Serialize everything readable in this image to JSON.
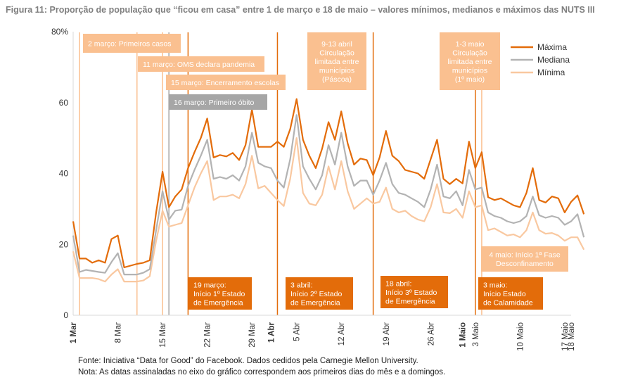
{
  "figure_title": "Figura 11: Proporção de população que “ficou em casa” entre 1 de março e 18 de maio – valores mínimos, medianos e máximos das NUTS III",
  "footer": {
    "source": "Fonte: Iniciativa “Data for Good” do Facebook. Dados cedidos pela Carnegie Mellon University.",
    "note": "Nota: As datas assinaladas no eixo do gráfico correspondem aos primeiros dias do mês e a domingos."
  },
  "colors": {
    "max": "#e36c0a",
    "median": "#b3b3b3",
    "min": "#f9c8a0",
    "box_light": "#fac090",
    "box_dark": "#e36c0a",
    "box_grey": "#a6a6a6",
    "axis_text": "#333333"
  },
  "chart_data": {
    "type": "line",
    "ylim": [
      0,
      80
    ],
    "yticks": [
      "0",
      "20",
      "40",
      "60",
      "80%"
    ],
    "ytick_values": [
      0,
      20,
      40,
      60,
      80
    ],
    "grid": false,
    "legend_position": "top-right",
    "x_day_range": [
      1,
      79
    ],
    "xticks": [
      {
        "day": 1,
        "label": "1 Mar",
        "bold": true
      },
      {
        "day": 8,
        "label": "8 Mar",
        "bold": false
      },
      {
        "day": 15,
        "label": "15 Mar",
        "bold": false
      },
      {
        "day": 22,
        "label": "22 Mar",
        "bold": false
      },
      {
        "day": 29,
        "label": "29 Mar",
        "bold": false
      },
      {
        "day": 32,
        "label": "1 Abr",
        "bold": true
      },
      {
        "day": 36,
        "label": "5 Abr",
        "bold": false
      },
      {
        "day": 43,
        "label": "12 Abr",
        "bold": false
      },
      {
        "day": 50,
        "label": "19 Abr",
        "bold": false
      },
      {
        "day": 57,
        "label": "26 Abr",
        "bold": false
      },
      {
        "day": 62,
        "label": "1 Maio",
        "bold": true
      },
      {
        "day": 64,
        "label": "3 Maio",
        "bold": false
      },
      {
        "day": 71,
        "label": "10 Maio",
        "bold": false
      },
      {
        "day": 78,
        "label": "17 Maio",
        "bold": false
      },
      {
        "day": 79,
        "label": "18 Maio",
        "bold": false
      }
    ],
    "series": [
      {
        "name": "Máxima",
        "color_key": "max",
        "values": [
          26.5,
          16,
          16,
          14.8,
          15.5,
          14.8,
          21.5,
          22.5,
          13.5,
          14,
          14.5,
          14.8,
          15.5,
          29,
          40.5,
          30.5,
          33.5,
          35.5,
          41.5,
          46,
          50,
          55.5,
          44.5,
          45.2,
          44.8,
          45.8,
          43.8,
          48,
          58,
          47.5,
          47.5,
          47.5,
          49,
          47.5,
          52.5,
          61,
          49.5,
          45,
          41.5,
          47,
          54.5,
          49.5,
          57.5,
          48.5,
          42.5,
          44.2,
          43.8,
          39.5,
          44.5,
          52,
          45,
          43.5,
          41,
          40.5,
          40,
          38.5,
          44,
          49.5,
          38.5,
          37,
          38.5,
          37.2,
          49,
          41.5,
          46,
          33.3,
          32.5,
          33,
          32,
          31,
          30.5,
          34.5,
          41.5,
          32.5,
          31.8,
          33.5,
          33,
          29,
          32,
          33.8,
          28.5
        ]
      },
      {
        "name": "Mediana",
        "color_key": "median",
        "values": [
          22.5,
          12.2,
          12.8,
          12.5,
          12.2,
          12,
          15,
          17.5,
          11.5,
          11.5,
          11.5,
          12,
          13,
          24,
          35,
          27,
          29.5,
          29.8,
          36.5,
          41,
          45,
          49.5,
          38.5,
          39,
          38.5,
          39.5,
          38,
          42,
          51.5,
          43,
          42,
          41.5,
          38,
          36,
          44,
          56.5,
          42,
          38.5,
          35.5,
          39.5,
          48,
          42.5,
          51.5,
          42,
          36.5,
          38,
          38,
          34,
          38,
          43,
          37,
          34.5,
          34,
          33,
          32,
          30.5,
          35.5,
          42.5,
          33.5,
          33,
          35,
          31,
          41,
          35.5,
          36,
          29,
          28,
          27.5,
          26.5,
          26,
          26.5,
          28,
          33.5,
          28.2,
          27.5,
          28,
          27.5,
          25.5,
          26.5,
          28.5,
          22
        ]
      },
      {
        "name": "Mínima",
        "color_key": "min",
        "values": [
          18,
          10.5,
          10.5,
          10.5,
          10.2,
          9.5,
          11.5,
          13,
          9.5,
          9.5,
          9.5,
          9.8,
          11,
          21,
          29.5,
          25,
          25.5,
          26,
          31,
          36,
          40,
          43.5,
          32.5,
          33.5,
          33.5,
          34,
          33,
          37,
          45,
          35.8,
          36.5,
          34.5,
          32.5,
          30.8,
          38.5,
          50,
          34.5,
          31.5,
          31,
          34,
          42,
          35.5,
          43.5,
          35,
          30,
          31.5,
          33,
          31.5,
          32,
          36,
          30,
          29,
          29.5,
          28,
          27,
          26.5,
          30.5,
          37,
          29,
          28.8,
          30,
          27.5,
          35,
          30.5,
          31,
          24,
          24.5,
          23.5,
          22.5,
          22.8,
          22,
          24,
          29,
          24,
          23,
          23.2,
          22.5,
          21,
          22,
          22,
          18.5
        ]
      }
    ],
    "event_lines": [
      {
        "day": 2,
        "color_key": "box_light"
      },
      {
        "day": 11,
        "color_key": "box_light"
      },
      {
        "day": 15,
        "color_key": "box_light"
      },
      {
        "day": 16,
        "color_key": "box_grey"
      },
      {
        "day": 19,
        "color_key": "box_dark"
      },
      {
        "day": 33,
        "color_key": "box_dark"
      },
      {
        "day": 48,
        "color_key": "box_dark"
      },
      {
        "day": 64,
        "color_key": "box_dark"
      },
      {
        "day": 65,
        "color_key": "box_light"
      }
    ],
    "annotations": [
      {
        "id": "a1",
        "day": 2,
        "lines": [
          "2 março: Primeiros casos"
        ],
        "color_key": "box_light"
      },
      {
        "id": "a2",
        "day": 11,
        "lines": [
          "11 março: OMS declara pandemia"
        ],
        "color_key": "box_light"
      },
      {
        "id": "a3",
        "day": 15,
        "lines": [
          "15 março: Encerramento escolas"
        ],
        "color_key": "box_light"
      },
      {
        "id": "a4",
        "day": 16,
        "lines": [
          "16 março: Primeiro óbito"
        ],
        "color_key": "box_grey"
      },
      {
        "id": "a5",
        "day": 19,
        "lines": [
          "19 março:",
          "Início 1º Estado",
          "de Emergência"
        ],
        "color_key": "box_dark"
      },
      {
        "id": "a6",
        "day": 33,
        "lines": [
          "3 abril:",
          "Início 2º Estado",
          "de Emergência"
        ],
        "color_key": "box_dark"
      },
      {
        "id": "a7",
        "day": 48,
        "lines": [
          "18 abril:",
          "Início 3º Estado",
          "de Emergência"
        ],
        "color_key": "box_dark"
      },
      {
        "id": "a8",
        "day": 40,
        "lines": [
          "9-13 abril",
          "Circulação",
          "limitada entre",
          "municípios",
          "(Páscoa)"
        ],
        "color_key": "box_light"
      },
      {
        "id": "a9",
        "day": 62,
        "lines": [
          "1-3 maio",
          "Circulação",
          "limitada entre",
          "municípios",
          "(1º maio)"
        ],
        "color_key": "box_light"
      },
      {
        "id": "a10",
        "day": 64,
        "lines": [
          "3 maio:",
          "Início Estado",
          "de Calamidade"
        ],
        "color_key": "box_dark"
      },
      {
        "id": "a11",
        "day": 65,
        "lines": [
          "4 maio: Início 1ª Fase",
          "Desconfinamento"
        ],
        "color_key": "box_light"
      }
    ]
  }
}
